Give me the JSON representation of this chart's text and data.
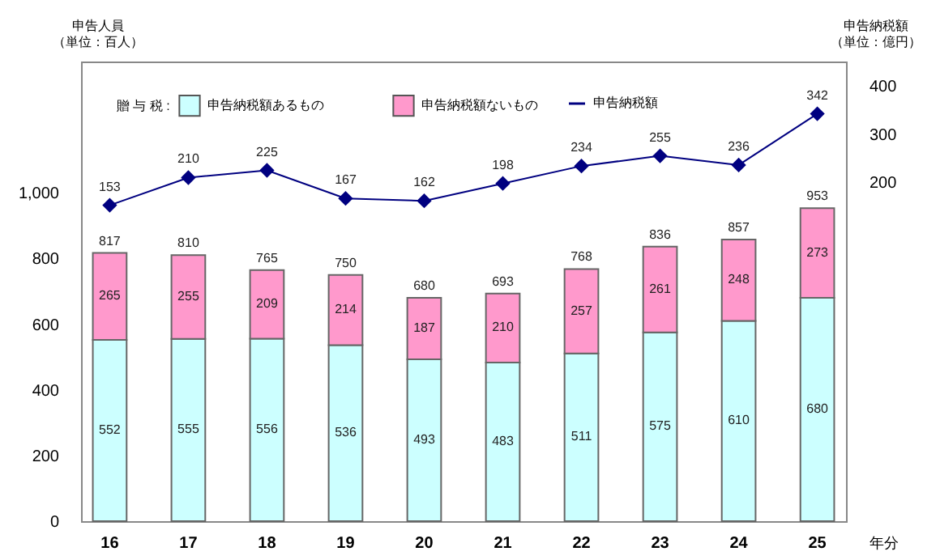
{
  "chart_data": {
    "type": "bar",
    "stacked": true,
    "categories": [
      "16",
      "17",
      "18",
      "19",
      "20",
      "21",
      "22",
      "23",
      "24",
      "25"
    ],
    "series": [
      {
        "name": "申告納税額あるもの",
        "color": "#ccffff",
        "values": [
          552,
          555,
          556,
          536,
          493,
          483,
          511,
          575,
          610,
          680
        ]
      },
      {
        "name": "申告納税額ないもの",
        "color": "#ff99cc",
        "values": [
          265,
          255,
          209,
          214,
          187,
          210,
          257,
          261,
          248,
          273
        ]
      },
      {
        "name": "申告納税額",
        "type": "line",
        "axis": "y2",
        "color": "#000080",
        "marker": "diamond",
        "values": [
          153,
          210,
          225,
          167,
          162,
          198,
          234,
          255,
          236,
          342
        ]
      }
    ],
    "totals": [
      "817",
      "810",
      "765",
      "750",
      "680",
      "693",
      "768",
      "836",
      "857",
      "953"
    ],
    "data_labels": true,
    "ylabel": "申告人員（単位：百人）",
    "y2label": "申告納税額（単位：億円）",
    "xlabel": "年分",
    "legend_title": "贈 与 税 :",
    "legend": "top left",
    "ylim": [
      0,
      1400
    ],
    "yticks": [
      0,
      200,
      400,
      600,
      800,
      {
        "value": 1000,
        "label": "1,000"
      }
    ],
    "y2lim": [
      -500,
      450
    ],
    "y2ticks": [
      200,
      300,
      400
    ]
  }
}
